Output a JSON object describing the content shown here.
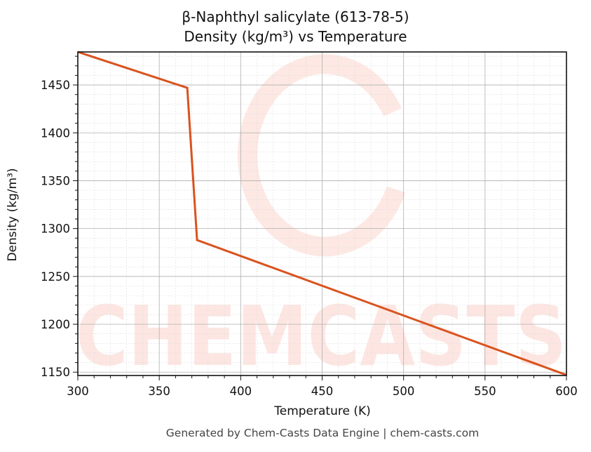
{
  "chart_data": {
    "type": "line",
    "title": "β-Naphthyl salicylate (613-78-5)",
    "subtitle": "Density (kg/m³) vs Temperature",
    "xlabel": "Temperature (K)",
    "ylabel": "Density (kg/m³)",
    "xlim": [
      300,
      600
    ],
    "ylim": [
      1146.5,
      1484.5
    ],
    "x_ticks": [
      300,
      350,
      400,
      450,
      500,
      550,
      600
    ],
    "y_ticks": [
      1150,
      1200,
      1250,
      1300,
      1350,
      1400,
      1450
    ],
    "grid": true,
    "legend": null,
    "series": [
      {
        "name": "Density",
        "color": "#d9531e",
        "x": [
          300,
          367.2,
          373.2,
          600
        ],
        "y": [
          1484.5,
          1447,
          1288,
          1147
        ]
      }
    ],
    "watermark": "CHEMCASTS"
  },
  "footer": "Generated by Chem-Casts Data Engine | chem-casts.com"
}
